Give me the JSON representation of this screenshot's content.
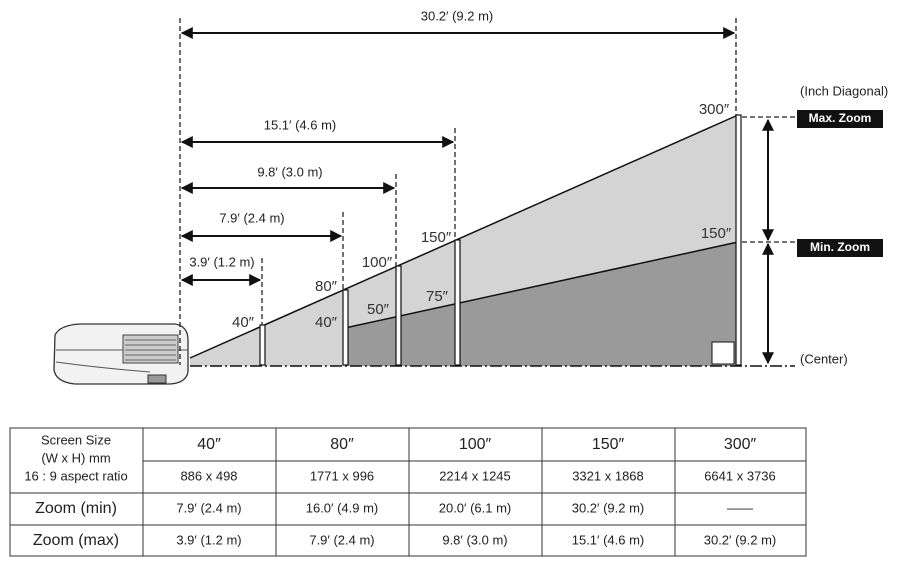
{
  "diagram": {
    "throw_distances": [
      "30.2′ (9.2 m)",
      "15.1′ (4.6 m)",
      "9.8′ (3.0 m)",
      "7.9′ (2.4 m)",
      "3.9′ (1.2 m)"
    ],
    "max_zoom_sizes": [
      "40″",
      "80″",
      "100″",
      "150″",
      "300″"
    ],
    "min_zoom_sizes": [
      "40″",
      "50″",
      "75″",
      "150″"
    ],
    "inch_diagonal": "(Inch Diagonal)",
    "max_zoom": "Max. Zoom",
    "min_zoom": "Min. Zoom",
    "center": "(Center)"
  },
  "table": {
    "header_label": [
      "Screen Size",
      "(W x H) mm",
      "16 : 9 aspect ratio"
    ],
    "screen_sizes": [
      "40″",
      "80″",
      "100″",
      "150″",
      "300″"
    ],
    "dimensions": [
      "886 x 498",
      "1771 x 996",
      "2214 x 1245",
      "3321 x 1868",
      "6641 x 3736"
    ],
    "rows": [
      {
        "label": "Zoom (min)",
        "cells": [
          "7.9′ (2.4 m)",
          "16.0′ (4.9 m)",
          "20.0′ (6.1 m)",
          "30.2′ (9.2 m)",
          "——"
        ]
      },
      {
        "label": "Zoom (max)",
        "cells": [
          "3.9′ (1.2 m)",
          "7.9′ (2.4 m)",
          "9.8′ (3.0 m)",
          "15.1′ (4.6 m)",
          "30.2′ (9.2 m)"
        ]
      }
    ]
  }
}
